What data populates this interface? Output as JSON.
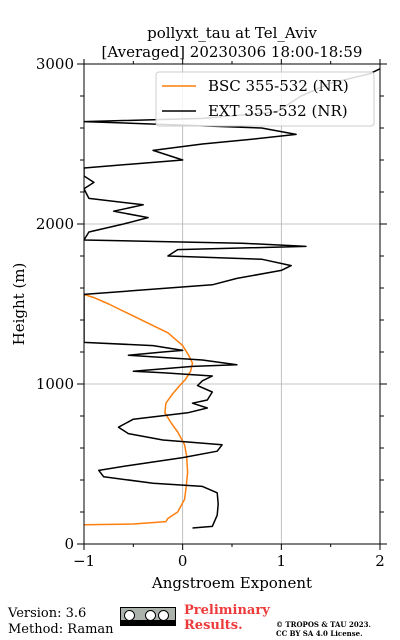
{
  "chart_data": {
    "type": "line",
    "title": [
      "pollyxt_tau at Tel_Aviv",
      "[Averaged] 20230306 18:00-18:59"
    ],
    "xlabel": "Angstroem Exponent",
    "ylabel": "Height (m)",
    "xlim": [
      -1,
      2
    ],
    "ylim": [
      0,
      3000
    ],
    "xticks": [
      -1,
      0,
      1,
      2
    ],
    "yticks": [
      0,
      1000,
      2000,
      3000
    ],
    "grid": true,
    "legend_position": "top-right",
    "series": [
      {
        "name": "BSC 355-532 (NR)",
        "color": "#ff7f0e",
        "points": [
          [
            -1.0,
            120
          ],
          [
            -0.5,
            125
          ],
          [
            -0.17,
            140
          ],
          [
            -0.15,
            160
          ],
          [
            -0.05,
            200
          ],
          [
            0.02,
            280
          ],
          [
            0.04,
            380
          ],
          [
            0.05,
            450
          ],
          [
            0.04,
            550
          ],
          [
            0.02,
            620
          ],
          [
            -0.05,
            700
          ],
          [
            -0.12,
            760
          ],
          [
            -0.18,
            820
          ],
          [
            -0.17,
            880
          ],
          [
            -0.1,
            940
          ],
          [
            -0.03,
            990
          ],
          [
            0.03,
            1030
          ],
          [
            0.08,
            1080
          ],
          [
            0.1,
            1130
          ],
          [
            0.06,
            1180
          ],
          [
            0.0,
            1240
          ],
          [
            -0.15,
            1320
          ],
          [
            -0.35,
            1380
          ],
          [
            -0.55,
            1440
          ],
          [
            -0.75,
            1500
          ],
          [
            -0.9,
            1540
          ],
          [
            -1.0,
            1560
          ]
        ]
      },
      {
        "name": "EXT 355-532 (NR)",
        "color": "#000000",
        "points": [
          [
            0.1,
            100
          ],
          [
            0.3,
            110
          ],
          [
            0.35,
            180
          ],
          [
            0.36,
            250
          ],
          [
            0.35,
            320
          ],
          [
            0.2,
            360
          ],
          [
            -0.3,
            380
          ],
          [
            -0.8,
            420
          ],
          [
            -0.85,
            460
          ],
          [
            -0.55,
            490
          ],
          [
            0.0,
            540
          ],
          [
            0.35,
            580
          ],
          [
            0.4,
            620
          ],
          [
            -0.2,
            650
          ],
          [
            -0.55,
            690
          ],
          [
            -0.65,
            730
          ],
          [
            -0.5,
            780
          ],
          [
            0.05,
            820
          ],
          [
            0.25,
            850
          ],
          [
            0.1,
            880
          ],
          [
            0.25,
            900
          ],
          [
            0.3,
            950
          ],
          [
            0.15,
            990
          ],
          [
            0.2,
            1020
          ],
          [
            0.3,
            1050
          ],
          [
            -0.2,
            1070
          ],
          [
            -0.5,
            1080
          ],
          [
            0.1,
            1110
          ],
          [
            0.55,
            1120
          ],
          [
            0.2,
            1150
          ],
          [
            -0.55,
            1180
          ],
          [
            -0.2,
            1200
          ],
          [
            0.0,
            1210
          ],
          [
            -0.3,
            1240
          ],
          [
            -1.0,
            1260
          ],
          [
            -1.0,
            1560
          ],
          [
            0.3,
            1620
          ],
          [
            0.55,
            1660
          ],
          [
            1.0,
            1710
          ],
          [
            1.1,
            1740
          ],
          [
            0.8,
            1780
          ],
          [
            -0.15,
            1800
          ],
          [
            -0.05,
            1840
          ],
          [
            1.25,
            1860
          ],
          [
            0.6,
            1880
          ],
          [
            -1.0,
            1900
          ],
          [
            -0.95,
            1950
          ],
          [
            -0.6,
            2000
          ],
          [
            -0.35,
            2040
          ],
          [
            -0.7,
            2080
          ],
          [
            -0.4,
            2120
          ],
          [
            -0.95,
            2160
          ],
          [
            -1.0,
            2220
          ],
          [
            -0.9,
            2260
          ],
          [
            -1.0,
            2300
          ],
          [
            -1.0,
            2350
          ],
          [
            -0.8,
            2360
          ],
          [
            0.0,
            2400
          ],
          [
            -0.3,
            2460
          ],
          [
            0.2,
            2500
          ],
          [
            0.7,
            2530
          ],
          [
            1.15,
            2560
          ],
          [
            0.8,
            2600
          ],
          [
            -1.0,
            2640
          ],
          [
            0.2,
            2660
          ],
          [
            0.95,
            2700
          ],
          [
            1.2,
            2800
          ],
          [
            1.5,
            2880
          ],
          [
            1.9,
            2940
          ],
          [
            2.0,
            2970
          ]
        ]
      }
    ]
  },
  "footer": {
    "version": "Version: 3.6",
    "method": "Method: Raman",
    "license_badge": "cc-by-sa-badge",
    "preliminary": "Preliminary Results.",
    "copyright_line1": "© TROPOS & TAU 2023.",
    "copyright_line2": "CC BY SA 4.0 License."
  }
}
